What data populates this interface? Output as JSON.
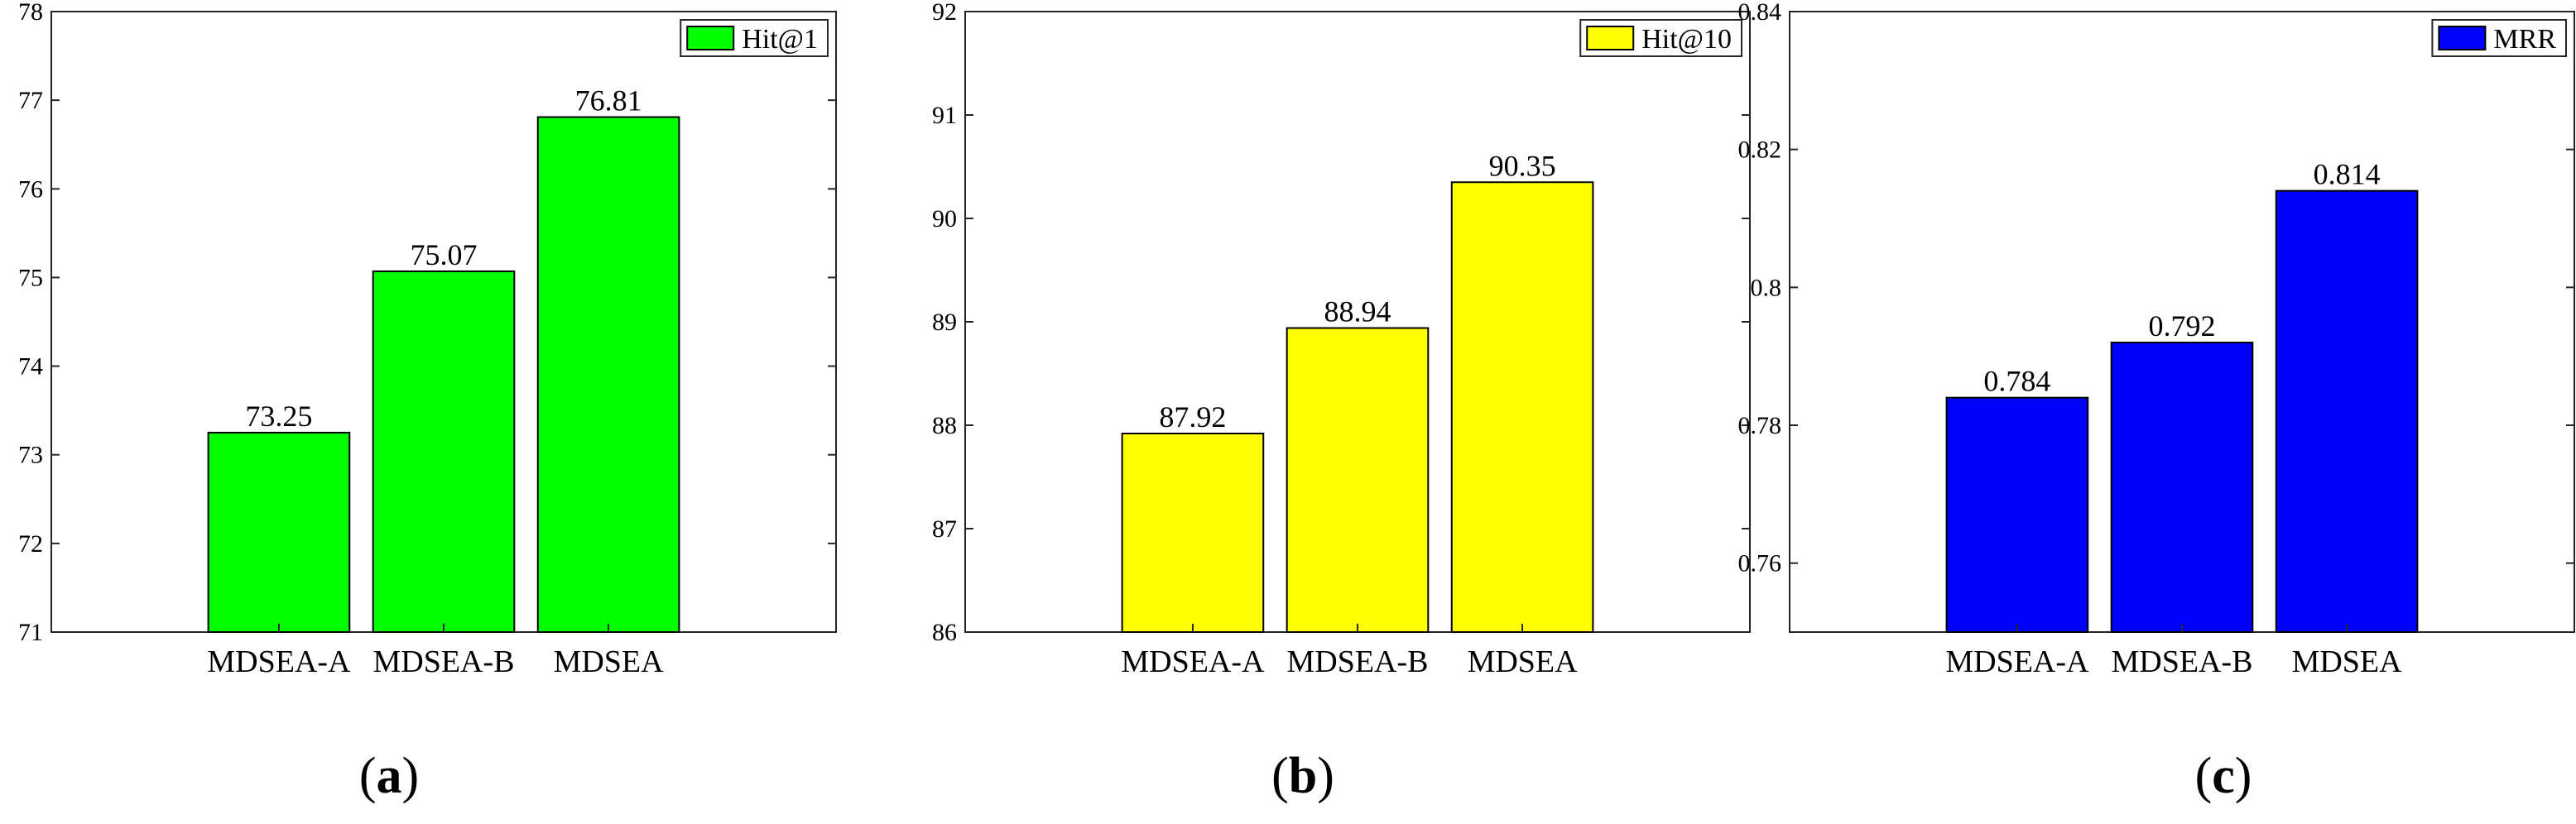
{
  "chart_data": [
    {
      "type": "bar",
      "panel_label": "a",
      "categories": [
        "MDSEA-A",
        "MDSEA-B",
        "MDSEA"
      ],
      "values": [
        73.25,
        75.07,
        76.81
      ],
      "value_labels": [
        "73.25",
        "75.07",
        "76.81"
      ],
      "ylim": [
        71,
        78
      ],
      "yticks": [
        71,
        72,
        73,
        74,
        75,
        76,
        77,
        78
      ],
      "ytick_labels": [
        "71",
        "72",
        "73",
        "74",
        "75",
        "76",
        "77",
        "78"
      ],
      "legend": "Hit@1",
      "legend_position": "top-right",
      "color": "#00ff00",
      "grid": false
    },
    {
      "type": "bar",
      "panel_label": "b",
      "categories": [
        "MDSEA-A",
        "MDSEA-B",
        "MDSEA"
      ],
      "values": [
        87.92,
        88.94,
        90.35
      ],
      "value_labels": [
        "87.92",
        "88.94",
        "90.35"
      ],
      "ylim": [
        86,
        92
      ],
      "yticks": [
        86,
        87,
        88,
        89,
        90,
        91,
        92
      ],
      "ytick_labels": [
        "86",
        "87",
        "88",
        "89",
        "90",
        "91",
        "92"
      ],
      "legend": "Hit@10",
      "legend_position": "top-right",
      "color": "#ffff00",
      "grid": false
    },
    {
      "type": "bar",
      "panel_label": "c",
      "categories": [
        "MDSEA-A",
        "MDSEA-B",
        "MDSEA"
      ],
      "values": [
        0.784,
        0.792,
        0.814
      ],
      "value_labels": [
        "0.784",
        "0.792",
        "0.814"
      ],
      "ylim": [
        0.75,
        0.84
      ],
      "yticks": [
        0.76,
        0.78,
        0.8,
        0.82,
        0.84
      ],
      "ytick_labels": [
        "0.76",
        "0.78",
        "0.8",
        "0.82",
        "0.84"
      ],
      "legend": "MRR",
      "legend_position": "top-right",
      "color": "#0000ff",
      "grid": false
    }
  ]
}
